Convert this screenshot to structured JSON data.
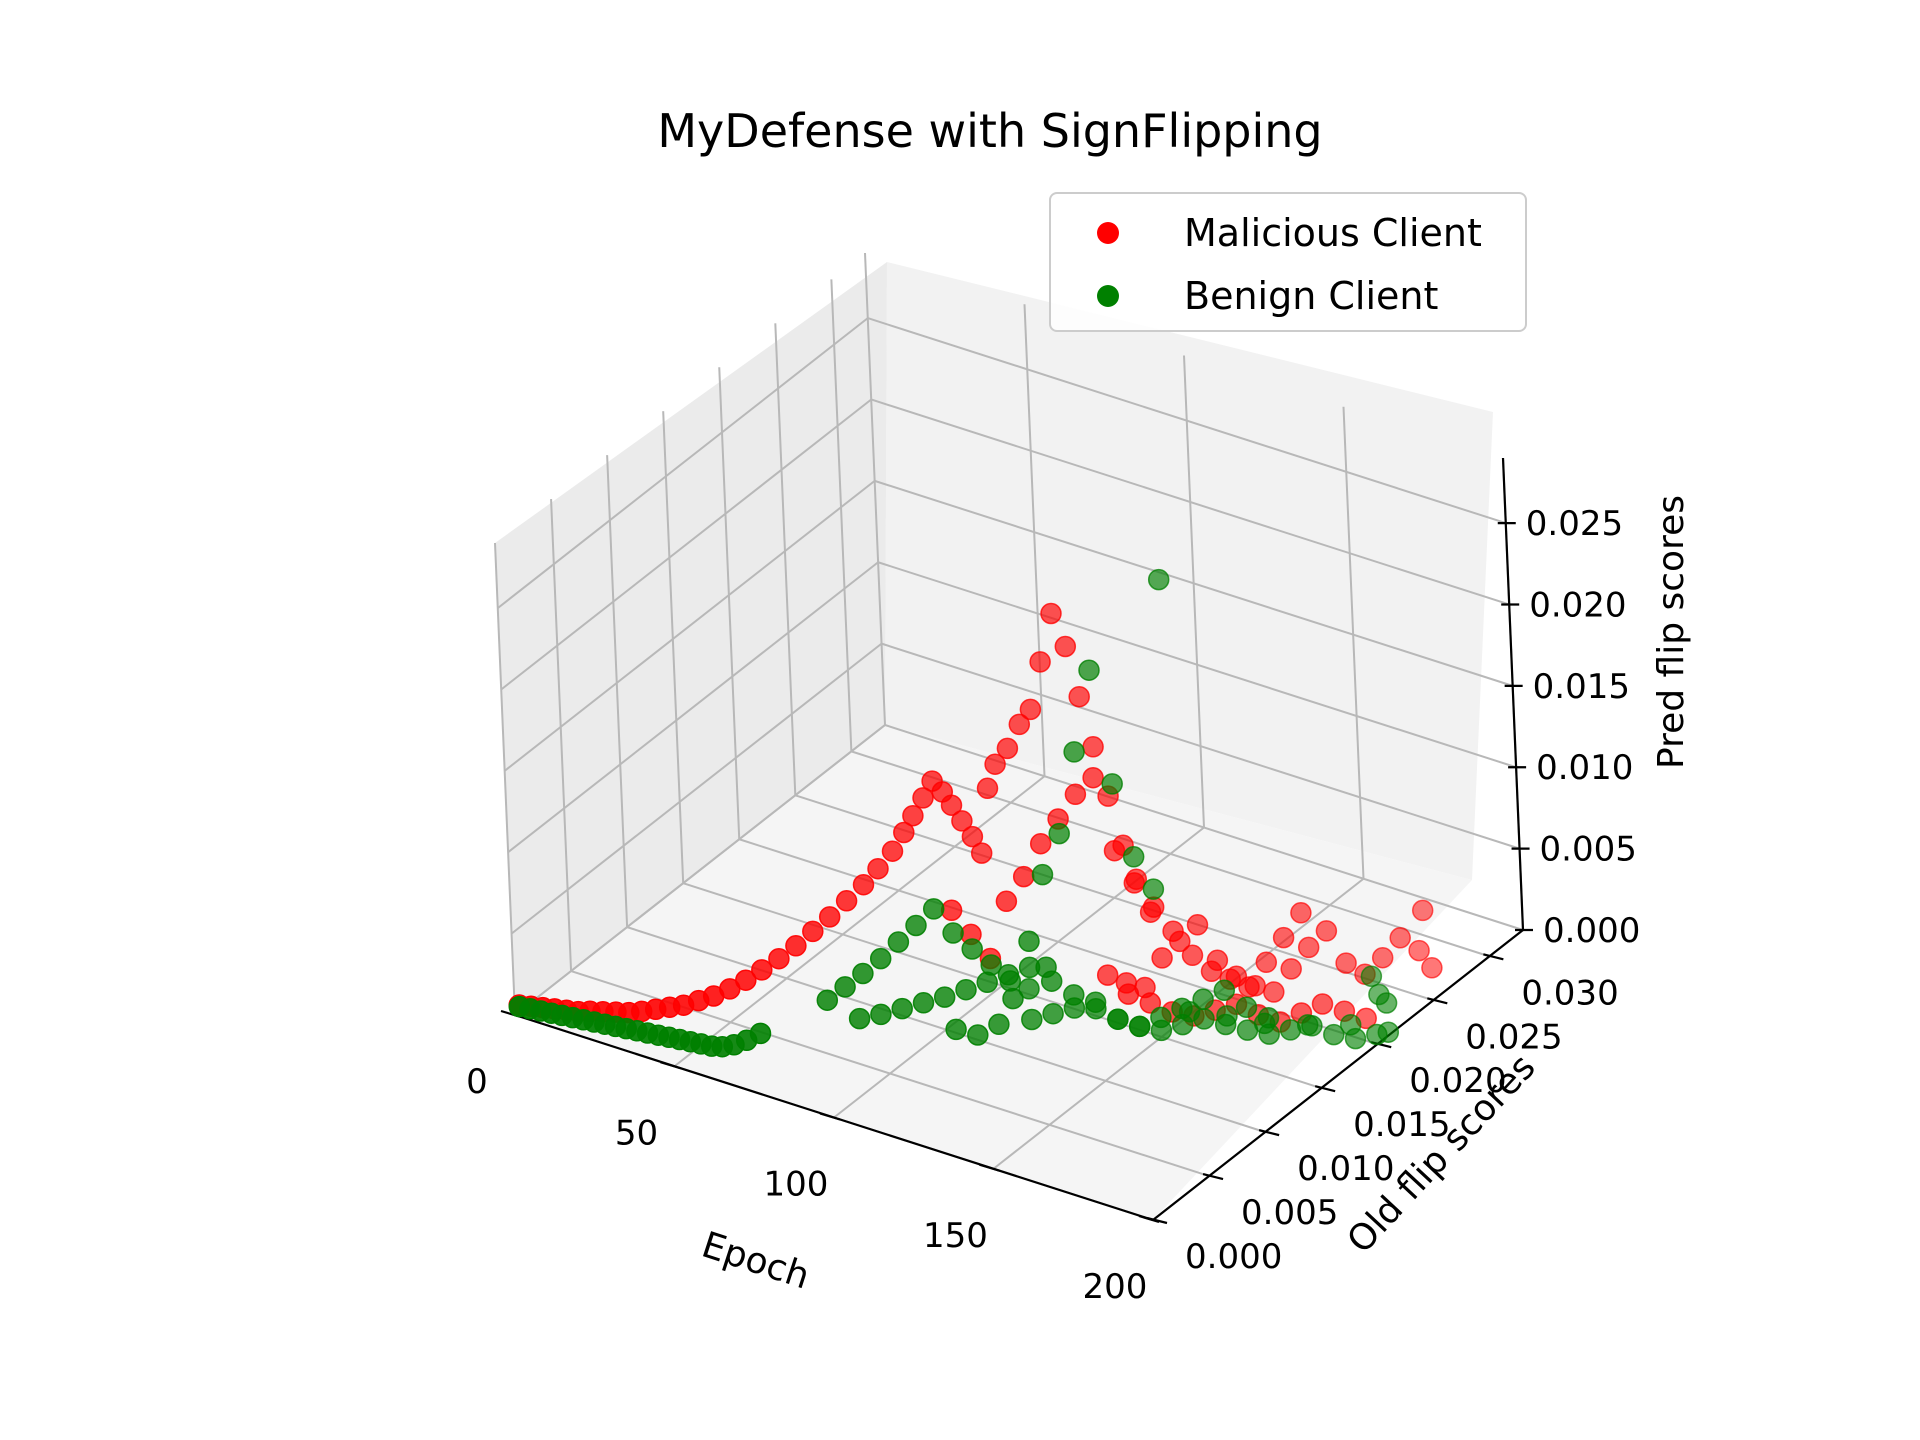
{
  "chart_data": {
    "type": "scatter",
    "title": "MyDefense with SignFlipping",
    "xlabel": "Epoch",
    "ylabel": "Old flip scores",
    "zlabel": "Pred flip scores",
    "xlim": [
      0,
      200
    ],
    "ylim": [
      0,
      0.033
    ],
    "zlim": [
      0,
      0.029
    ],
    "x_ticks": [
      "0",
      "50",
      "100",
      "150",
      "200"
    ],
    "y_ticks": [
      "0.000",
      "0.005",
      "0.010",
      "0.015",
      "0.020",
      "0.025",
      "0.030"
    ],
    "z_ticks": [
      "0.000",
      "0.005",
      "0.010",
      "0.015",
      "0.020",
      "0.025"
    ],
    "grid": true,
    "legend_position": "top-right",
    "series": [
      {
        "name": "Malicious Client",
        "color": "#ff0000",
        "points": [
          [
            0,
            0.0004,
            0.0004
          ],
          [
            3,
            0.0006,
            0.0004
          ],
          [
            6,
            0.0008,
            0.0004
          ],
          [
            9,
            0.001,
            0.0004
          ],
          [
            12,
            0.0012,
            0.0004
          ],
          [
            15,
            0.0014,
            0.0004
          ],
          [
            18,
            0.0016,
            0.0005
          ],
          [
            21,
            0.0019,
            0.0005
          ],
          [
            24,
            0.0022,
            0.0005
          ],
          [
            27,
            0.0025,
            0.0005
          ],
          [
            30,
            0.0028,
            0.0006
          ],
          [
            33,
            0.0032,
            0.0007
          ],
          [
            36,
            0.0036,
            0.0008
          ],
          [
            39,
            0.004,
            0.0009
          ],
          [
            42,
            0.0045,
            0.0011
          ],
          [
            45,
            0.005,
            0.0013
          ],
          [
            48,
            0.0056,
            0.0016
          ],
          [
            51,
            0.0062,
            0.002
          ],
          [
            54,
            0.0068,
            0.0025
          ],
          [
            57,
            0.0075,
            0.003
          ],
          [
            60,
            0.0082,
            0.0036
          ],
          [
            63,
            0.0089,
            0.0043
          ],
          [
            66,
            0.0096,
            0.005
          ],
          [
            69,
            0.0103,
            0.0058
          ],
          [
            72,
            0.011,
            0.0066
          ],
          [
            75,
            0.0115,
            0.0075
          ],
          [
            78,
            0.012,
            0.0085
          ],
          [
            80,
            0.0125,
            0.0095
          ],
          [
            82,
            0.0128,
            0.0105
          ],
          [
            84,
            0.0132,
            0.0115
          ],
          [
            86,
            0.0135,
            0.0125
          ],
          [
            88,
            0.0138,
            0.0118
          ],
          [
            90,
            0.014,
            0.011
          ],
          [
            92,
            0.0143,
            0.01
          ],
          [
            94,
            0.0146,
            0.009
          ],
          [
            96,
            0.0148,
            0.008
          ],
          [
            98,
            0.015,
            0.012
          ],
          [
            100,
            0.0152,
            0.0135
          ],
          [
            103,
            0.0155,
            0.0145
          ],
          [
            106,
            0.0158,
            0.016
          ],
          [
            109,
            0.016,
            0.017
          ],
          [
            112,
            0.0162,
            0.02
          ],
          [
            115,
            0.0165,
            0.023
          ],
          [
            118,
            0.0168,
            0.021
          ],
          [
            121,
            0.017,
            0.018
          ],
          [
            124,
            0.0172,
            0.015
          ],
          [
            127,
            0.0175,
            0.012
          ],
          [
            130,
            0.0178,
            0.009
          ],
          [
            133,
            0.018,
            0.007
          ],
          [
            136,
            0.0183,
            0.005
          ],
          [
            96,
            0.012,
            0.006
          ],
          [
            100,
            0.0125,
            0.0045
          ],
          [
            104,
            0.013,
            0.003
          ],
          [
            108,
            0.0135,
            0.0065
          ],
          [
            112,
            0.014,
            0.008
          ],
          [
            116,
            0.0145,
            0.01
          ],
          [
            120,
            0.015,
            0.0115
          ],
          [
            124,
            0.0155,
            0.013
          ],
          [
            128,
            0.016,
            0.014
          ],
          [
            132,
            0.0165,
            0.0095
          ],
          [
            136,
            0.017,
            0.0075
          ],
          [
            140,
            0.0175,
            0.006
          ],
          [
            144,
            0.018,
            0.0045
          ],
          [
            148,
            0.0185,
            0.003
          ],
          [
            152,
            0.019,
            0.002
          ],
          [
            156,
            0.0195,
            0.0015
          ],
          [
            160,
            0.02,
            0.001
          ],
          [
            164,
            0.0205,
            0.0025
          ],
          [
            168,
            0.021,
            0.004
          ],
          [
            172,
            0.0215,
            0.0055
          ],
          [
            130,
            0.016,
            0.002
          ],
          [
            134,
            0.0165,
            0.0015
          ],
          [
            138,
            0.017,
            0.0012
          ],
          [
            142,
            0.0175,
            0.003
          ],
          [
            146,
            0.018,
            0.004
          ],
          [
            150,
            0.0185,
            0.005
          ],
          [
            154,
            0.019,
            0.0028
          ],
          [
            158,
            0.0195,
            0.0018
          ],
          [
            162,
            0.02,
            0.0012
          ],
          [
            166,
            0.0205,
            0.0008
          ],
          [
            170,
            0.021,
            0.0022
          ],
          [
            174,
            0.0215,
            0.0035
          ],
          [
            178,
            0.022,
            0.0045
          ],
          [
            182,
            0.0225,
            0.0025
          ],
          [
            186,
            0.023,
            0.0018
          ],
          [
            190,
            0.0235,
            0.0028
          ],
          [
            194,
            0.024,
            0.004
          ],
          [
            198,
            0.0245,
            0.0032
          ],
          [
            200,
            0.025,
            0.002
          ],
          [
            196,
            0.0255,
            0.005
          ],
          [
            140,
            0.015,
            0.002
          ],
          [
            145,
            0.0155,
            0.0015
          ],
          [
            150,
            0.016,
            0.001
          ],
          [
            155,
            0.0165,
            0.0008
          ],
          [
            160,
            0.017,
            0.0012
          ],
          [
            165,
            0.0175,
            0.0016
          ],
          [
            170,
            0.018,
            0.001
          ],
          [
            175,
            0.0185,
            0.0006
          ],
          [
            180,
            0.019,
            0.0012
          ],
          [
            185,
            0.0195,
            0.0018
          ],
          [
            190,
            0.02,
            0.0014
          ],
          [
            195,
            0.0205,
            0.001
          ]
        ]
      },
      {
        "name": "Benign Client",
        "color": "#008000",
        "points": [
          [
            0,
            0.0004,
            0.0003
          ],
          [
            3,
            0.0005,
            0.0003
          ],
          [
            6,
            0.0006,
            0.0003
          ],
          [
            9,
            0.0007,
            0.0003
          ],
          [
            12,
            0.0008,
            0.0003
          ],
          [
            15,
            0.0009,
            0.0003
          ],
          [
            18,
            0.001,
            0.0003
          ],
          [
            21,
            0.0011,
            0.0003
          ],
          [
            24,
            0.0012,
            0.0003
          ],
          [
            27,
            0.0013,
            0.0003
          ],
          [
            30,
            0.0014,
            0.0003
          ],
          [
            33,
            0.0015,
            0.0003
          ],
          [
            36,
            0.0016,
            0.0003
          ],
          [
            39,
            0.0017,
            0.0003
          ],
          [
            42,
            0.0018,
            0.0003
          ],
          [
            45,
            0.0019,
            0.0003
          ],
          [
            48,
            0.002,
            0.0003
          ],
          [
            51,
            0.0021,
            0.0003
          ],
          [
            54,
            0.0022,
            0.0003
          ],
          [
            57,
            0.0023,
            0.0004
          ],
          [
            60,
            0.0025,
            0.0006
          ],
          [
            63,
            0.0028,
            0.0009
          ],
          [
            66,
            0.0032,
            0.0013
          ],
          [
            70,
            0.008,
            0.001
          ],
          [
            74,
            0.0085,
            0.0018
          ],
          [
            78,
            0.009,
            0.0026
          ],
          [
            82,
            0.0095,
            0.0035
          ],
          [
            86,
            0.01,
            0.0045
          ],
          [
            90,
            0.0105,
            0.0055
          ],
          [
            94,
            0.011,
            0.0065
          ],
          [
            98,
            0.0115,
            0.005
          ],
          [
            102,
            0.012,
            0.004
          ],
          [
            106,
            0.0125,
            0.003
          ],
          [
            110,
            0.013,
            0.002
          ],
          [
            114,
            0.0135,
            0.0015
          ],
          [
            118,
            0.014,
            0.0085
          ],
          [
            122,
            0.0145,
            0.011
          ],
          [
            126,
            0.015,
            0.016
          ],
          [
            130,
            0.0155,
            0.021
          ],
          [
            134,
            0.016,
            0.014
          ],
          [
            138,
            0.0165,
            0.0095
          ],
          [
            142,
            0.017,
            0.0075
          ],
          [
            146,
            0.0175,
            0.0265
          ],
          [
            80,
            0.008,
            0.0005
          ],
          [
            85,
            0.0085,
            0.0008
          ],
          [
            90,
            0.009,
            0.0012
          ],
          [
            95,
            0.0095,
            0.0016
          ],
          [
            100,
            0.01,
            0.002
          ],
          [
            105,
            0.0105,
            0.0025
          ],
          [
            110,
            0.011,
            0.003
          ],
          [
            115,
            0.0115,
            0.0035
          ],
          [
            120,
            0.012,
            0.004
          ],
          [
            125,
            0.0125,
            0.0032
          ],
          [
            130,
            0.013,
            0.0024
          ],
          [
            135,
            0.0135,
            0.0016
          ],
          [
            140,
            0.014,
            0.001
          ],
          [
            145,
            0.0145,
            0.0006
          ],
          [
            150,
            0.015,
            0.0012
          ],
          [
            155,
            0.0155,
            0.0018
          ],
          [
            160,
            0.016,
            0.0024
          ],
          [
            165,
            0.0165,
            0.003
          ],
          [
            170,
            0.017,
            0.002
          ],
          [
            175,
            0.0175,
            0.0014
          ],
          [
            120,
            0.012,
            0.0008
          ],
          [
            125,
            0.0125,
            0.0012
          ],
          [
            130,
            0.013,
            0.0016
          ],
          [
            135,
            0.0135,
            0.002
          ],
          [
            140,
            0.014,
            0.001
          ],
          [
            145,
            0.0145,
            0.0006
          ],
          [
            150,
            0.015,
            0.0004
          ],
          [
            155,
            0.0155,
            0.0008
          ],
          [
            160,
            0.016,
            0.0012
          ],
          [
            165,
            0.0165,
            0.0009
          ],
          [
            170,
            0.017,
            0.0006
          ],
          [
            175,
            0.0175,
            0.0004
          ],
          [
            180,
            0.018,
            0.0007
          ],
          [
            185,
            0.0185,
            0.001
          ],
          [
            190,
            0.019,
            0.0005
          ],
          [
            195,
            0.0195,
            0.0003
          ],
          [
            200,
            0.02,
            0.0006
          ],
          [
            198,
            0.0215,
            0.0016
          ],
          [
            192,
            0.0225,
            0.0012
          ],
          [
            188,
            0.023,
            0.0018
          ],
          [
            105,
            0.0095,
            0.0006
          ],
          [
            110,
            0.01,
            0.0003
          ],
          [
            115,
            0.0105,
            0.001
          ],
          [
            118,
            0.011,
            0.0025
          ],
          [
            122,
            0.0115,
            0.006
          ],
          [
            126,
            0.0118,
            0.0045
          ],
          [
            150,
            0.0175,
            0.0002
          ],
          [
            160,
            0.018,
            0.0003
          ],
          [
            170,
            0.0185,
            0.0002
          ],
          [
            180,
            0.0195,
            0.0002
          ],
          [
            190,
            0.0205,
            0.0003
          ],
          [
            200,
            0.021,
            0.0002
          ]
        ]
      }
    ]
  }
}
